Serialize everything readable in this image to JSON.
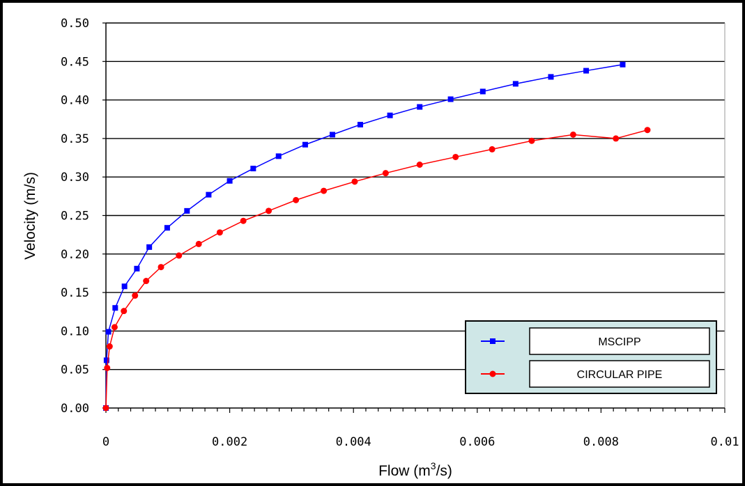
{
  "chart_data": {
    "type": "line",
    "xlabel_main": "Flow (m",
    "xlabel_sup": "3",
    "xlabel_end": "/s)",
    "ylabel": "Velocity (m/s)",
    "xlim": [
      0,
      0.01
    ],
    "ylim": [
      0,
      0.5
    ],
    "x_ticks": [
      "0",
      "0.002",
      "0.004",
      "0.006",
      "0.008",
      "0.01"
    ],
    "y_ticks": [
      "0.00",
      "0.05",
      "0.10",
      "0.15",
      "0.20",
      "0.25",
      "0.30",
      "0.35",
      "0.40",
      "0.45",
      "0.50"
    ],
    "grid": "horizontal",
    "legend_position": "bottom-right",
    "series": [
      {
        "name": "MSCIPP",
        "color": "#0000ff",
        "marker": "square",
        "x": [
          0,
          1e-05,
          4e-05,
          0.00015,
          0.0003,
          0.0005,
          0.0007,
          0.00099,
          0.00131,
          0.00166,
          0.002,
          0.00238,
          0.00279,
          0.00322,
          0.00366,
          0.00411,
          0.00459,
          0.00507,
          0.00557,
          0.00609,
          0.00662,
          0.00719,
          0.00776,
          0.00835
        ],
        "y": [
          0,
          0.062,
          0.099,
          0.13,
          0.158,
          0.181,
          0.209,
          0.234,
          0.256,
          0.277,
          0.295,
          0.311,
          0.327,
          0.342,
          0.355,
          0.368,
          0.38,
          0.391,
          0.401,
          0.411,
          0.421,
          0.43,
          0.438,
          0.446
        ]
      },
      {
        "name": "CIRCULAR PIPE",
        "color": "#ff0000",
        "marker": "diamond",
        "x": [
          0,
          2e-05,
          6e-05,
          0.00014,
          0.00029,
          0.00047,
          0.00065,
          0.00089,
          0.00118,
          0.0015,
          0.00184,
          0.00222,
          0.00263,
          0.00307,
          0.00352,
          0.00402,
          0.00452,
          0.00507,
          0.00565,
          0.00624,
          0.00688,
          0.00755,
          0.00824,
          0.00875
        ],
        "y": [
          0,
          0.052,
          0.08,
          0.105,
          0.126,
          0.146,
          0.165,
          0.183,
          0.198,
          0.213,
          0.228,
          0.243,
          0.256,
          0.27,
          0.282,
          0.294,
          0.305,
          0.316,
          0.326,
          0.336,
          0.347,
          0.355,
          0.35,
          0.361
        ]
      }
    ]
  }
}
